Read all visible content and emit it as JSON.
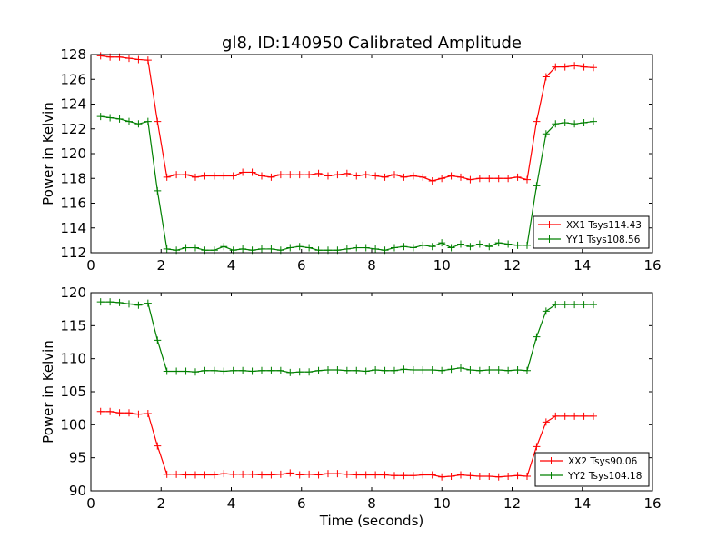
{
  "chart_data": [
    {
      "type": "line",
      "title": "gl8, ID:140950 Calibrated Amplitude",
      "xlabel": "",
      "ylabel": "Power in Kelvin",
      "xlim": [
        0,
        16
      ],
      "ylim": [
        112,
        128
      ],
      "xticks": [
        "0",
        "2",
        "4",
        "6",
        "8",
        "10",
        "12",
        "14",
        "16"
      ],
      "yticks": [
        "112",
        "114",
        "116",
        "118",
        "120",
        "122",
        "124",
        "126",
        "128"
      ],
      "legend": "bottom-right",
      "x0": 0.277,
      "dx": 0.27,
      "series": [
        {
          "name": "XX1 Tsys114.43",
          "color": "#ff0000",
          "values": [
            127.9,
            127.8,
            127.8,
            127.7,
            127.6,
            127.55,
            122.6,
            118.1,
            118.3,
            118.3,
            118.1,
            118.2,
            118.2,
            118.2,
            118.2,
            118.5,
            118.5,
            118.2,
            118.1,
            118.3,
            118.3,
            118.3,
            118.3,
            118.4,
            118.2,
            118.3,
            118.4,
            118.2,
            118.3,
            118.2,
            118.1,
            118.3,
            118.1,
            118.2,
            118.1,
            117.8,
            118.0,
            118.2,
            118.1,
            117.9,
            118.0,
            118.0,
            118.0,
            118.0,
            118.1,
            117.9,
            122.6,
            126.2,
            127.0,
            127.0,
            127.1,
            127.0,
            126.95
          ]
        },
        {
          "name": "YY1 Tsys108.56",
          "color": "#008000",
          "values": [
            123.0,
            122.9,
            122.8,
            122.6,
            122.4,
            122.6,
            117.0,
            112.3,
            112.2,
            112.4,
            112.4,
            112.2,
            112.2,
            112.5,
            112.2,
            112.3,
            112.2,
            112.3,
            112.3,
            112.2,
            112.4,
            112.5,
            112.4,
            112.2,
            112.2,
            112.2,
            112.3,
            112.4,
            112.4,
            112.3,
            112.2,
            112.4,
            112.5,
            112.4,
            112.6,
            112.5,
            112.8,
            112.4,
            112.7,
            112.5,
            112.7,
            112.5,
            112.8,
            112.7,
            112.6,
            112.6,
            117.4,
            121.6,
            122.4,
            122.5,
            122.4,
            122.5,
            122.6
          ]
        }
      ]
    },
    {
      "type": "line",
      "title": "",
      "xlabel": "Time (seconds)",
      "ylabel": "Power in Kelvin",
      "xlim": [
        0,
        16
      ],
      "ylim": [
        90,
        120
      ],
      "xticks": [
        "0",
        "2",
        "4",
        "6",
        "8",
        "10",
        "12",
        "14",
        "16"
      ],
      "yticks": [
        "90",
        "95",
        "100",
        "105",
        "110",
        "115",
        "120"
      ],
      "legend": "bottom-right",
      "x0": 0.277,
      "dx": 0.27,
      "series": [
        {
          "name": "XX2 Tsys90.06",
          "color": "#ff0000",
          "values": [
            102.0,
            102.0,
            101.8,
            101.8,
            101.6,
            101.7,
            96.8,
            92.5,
            92.5,
            92.4,
            92.4,
            92.4,
            92.4,
            92.6,
            92.5,
            92.5,
            92.5,
            92.4,
            92.4,
            92.5,
            92.7,
            92.4,
            92.5,
            92.4,
            92.6,
            92.6,
            92.5,
            92.4,
            92.4,
            92.4,
            92.4,
            92.3,
            92.3,
            92.3,
            92.4,
            92.4,
            92.1,
            92.2,
            92.4,
            92.3,
            92.2,
            92.2,
            92.1,
            92.2,
            92.3,
            92.2,
            96.7,
            100.4,
            101.3,
            101.3,
            101.3,
            101.3,
            101.3
          ]
        },
        {
          "name": "YY2 Tsys104.18",
          "color": "#008000",
          "values": [
            118.6,
            118.6,
            118.5,
            118.3,
            118.1,
            118.4,
            112.8,
            108.1,
            108.1,
            108.1,
            108.0,
            108.2,
            108.2,
            108.1,
            108.2,
            108.2,
            108.1,
            108.2,
            108.2,
            108.2,
            107.9,
            108.0,
            108.0,
            108.2,
            108.3,
            108.3,
            108.2,
            108.2,
            108.1,
            108.3,
            108.2,
            108.2,
            108.4,
            108.3,
            108.3,
            108.3,
            108.2,
            108.4,
            108.6,
            108.3,
            108.2,
            108.3,
            108.3,
            108.2,
            108.3,
            108.2,
            113.3,
            117.2,
            118.2,
            118.2,
            118.2,
            118.2,
            118.2
          ]
        }
      ]
    }
  ]
}
